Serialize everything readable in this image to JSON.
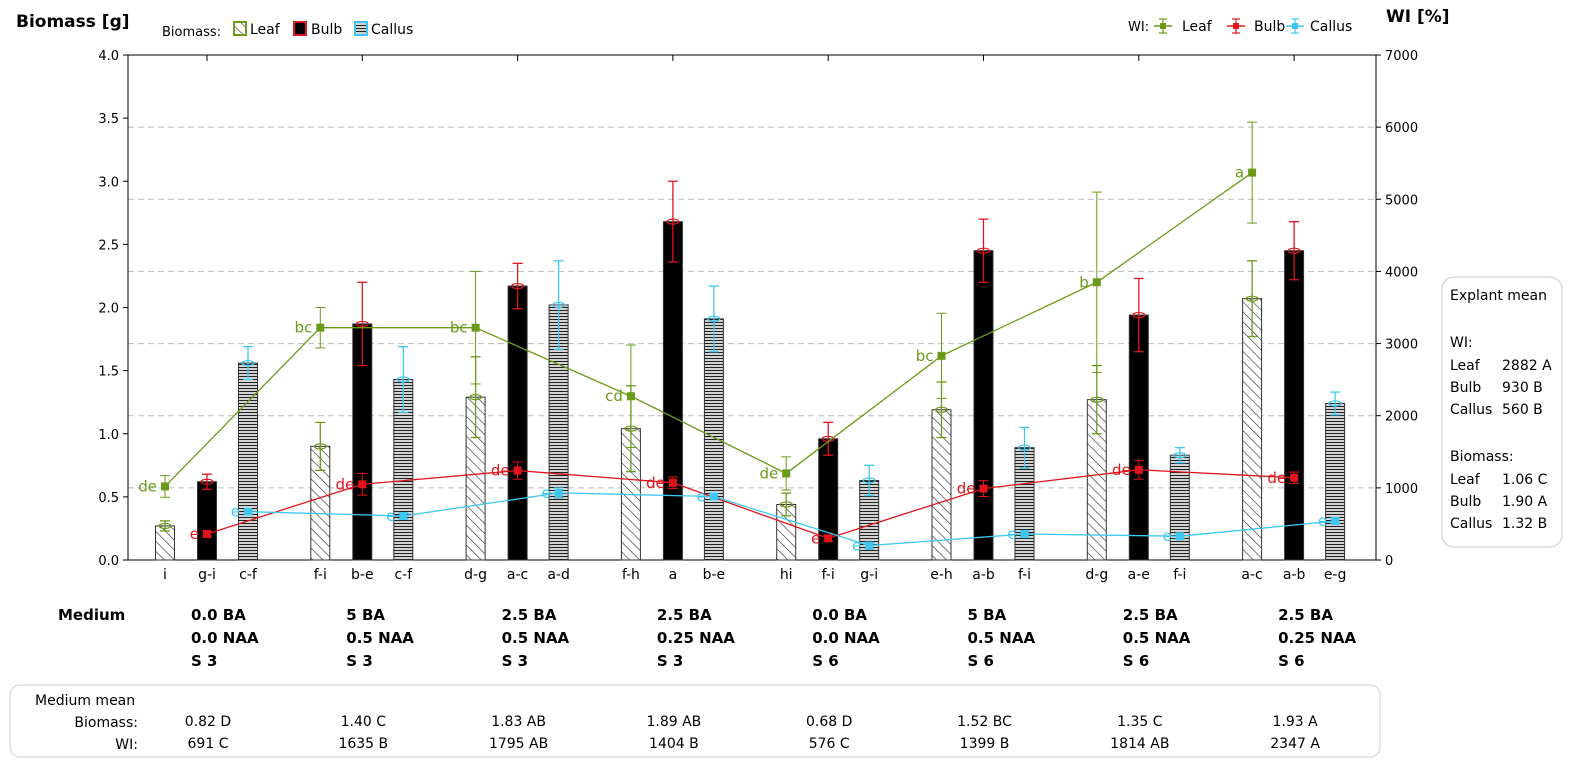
{
  "chart_data": {
    "type": "bar",
    "left_axis_title": "Biomass [g]",
    "right_axis_title": "WI [%]",
    "left_ticks": [
      "0.0",
      "0.5",
      "1.0",
      "1.5",
      "2.0",
      "2.5",
      "3.0",
      "3.5",
      "4.0"
    ],
    "right_ticks": [
      "0",
      "1000",
      "2000",
      "3000",
      "4000",
      "5000",
      "6000",
      "7000"
    ],
    "ylim_left": [
      0,
      4.0
    ],
    "ylim_right": [
      0,
      7000
    ],
    "colors": {
      "leaf": "#6b9a1a",
      "bulb": "#e0141c",
      "callus": "#3cc8f0",
      "grid": "#bbbbbb"
    },
    "legend_biomass": {
      "title": "Biomass:",
      "items": [
        "Leaf",
        "Bulb",
        "Callus"
      ]
    },
    "legend_wi": {
      "title": "WI:",
      "items": [
        "Leaf",
        "Bulb",
        "Callus"
      ]
    },
    "bar_series": [
      {
        "name": "Leaf",
        "values": [
          0.27,
          0.9,
          1.29,
          1.04,
          0.44,
          1.19,
          1.27,
          2.07
        ],
        "errors": [
          0.04,
          0.19,
          0.32,
          0.34,
          0.09,
          0.22,
          0.27,
          0.3
        ],
        "letters": [
          "i",
          "f-i",
          "d-g",
          "f-h",
          "hi",
          "e-h",
          "d-g",
          "a-c"
        ]
      },
      {
        "name": "Bulb",
        "values": [
          0.62,
          1.87,
          2.17,
          2.68,
          0.96,
          2.45,
          1.94,
          2.45
        ],
        "errors": [
          0.06,
          0.33,
          0.18,
          0.32,
          0.13,
          0.25,
          0.29,
          0.23
        ],
        "letters": [
          "g-i",
          "b-e",
          "a-c",
          "a",
          "f-i",
          "a-b",
          "a-e",
          "a-b"
        ]
      },
      {
        "name": "Callus",
        "values": [
          1.56,
          1.43,
          2.02,
          1.91,
          0.63,
          0.89,
          0.83,
          1.24
        ],
        "errors": [
          0.13,
          0.26,
          0.35,
          0.26,
          0.12,
          0.16,
          0.06,
          0.09
        ],
        "letters": [
          "c-f",
          "c-f",
          "a-d",
          "b-e",
          "g-i",
          "f-i",
          "f-i",
          "e-g"
        ]
      }
    ],
    "wi_series": [
      {
        "name": "Leaf",
        "values": [
          1020,
          3220,
          3220,
          2270,
          1200,
          2830,
          3850,
          5370
        ],
        "errors": [
          150,
          280,
          780,
          710,
          230,
          590,
          1250,
          700
        ],
        "letters": [
          "de",
          "bc",
          "bc",
          "cd",
          "de",
          "bc",
          "b",
          "a"
        ]
      },
      {
        "name": "Bulb",
        "values": [
          360,
          1050,
          1240,
          1070,
          300,
          990,
          1250,
          1140
        ],
        "errors": [
          40,
          150,
          120,
          80,
          40,
          110,
          130,
          80
        ],
        "letters": [
          "e",
          "de",
          "de",
          "de",
          "e",
          "de",
          "de",
          "de"
        ]
      },
      {
        "name": "Callus",
        "values": [
          670,
          610,
          930,
          880,
          200,
          360,
          330,
          540
        ],
        "errors": [
          30,
          40,
          70,
          50,
          40,
          50,
          40,
          40
        ],
        "letters": [
          "e",
          "e",
          "e",
          "e",
          "e",
          "e",
          "e",
          "e"
        ]
      }
    ],
    "explant_mean": {
      "title": "Explant mean",
      "wi_title": "WI:",
      "wi_rows": [
        {
          "label": "Leaf",
          "value": "2882 A"
        },
        {
          "label": "Bulb",
          "value": "930 B"
        },
        {
          "label": "Callus",
          "value": "560 B"
        }
      ],
      "biomass_title": "Biomass:",
      "biomass_rows": [
        {
          "label": "Leaf",
          "value": "1.06 C"
        },
        {
          "label": "Bulb",
          "value": "1.90 A"
        },
        {
          "label": "Callus",
          "value": "1.32 B"
        }
      ]
    },
    "medium_label": "Medium",
    "groups": [
      {
        "medium": [
          "0.0 BA",
          "0.0 NAA",
          "S 3"
        ],
        "biomass_mean": "0.82 D",
        "wi_mean": "691 C"
      },
      {
        "medium": [
          "5 BA",
          "0.5 NAA",
          "S 3"
        ],
        "biomass_mean": "1.40 C",
        "wi_mean": "1635 B"
      },
      {
        "medium": [
          "2.5 BA",
          "0.5 NAA",
          "S 3"
        ],
        "biomass_mean": "1.83 AB",
        "wi_mean": "1795 AB"
      },
      {
        "medium": [
          "2.5 BA",
          "0.25 NAA",
          "S 3"
        ],
        "biomass_mean": "1.89 AB",
        "wi_mean": "1404 B"
      },
      {
        "medium": [
          "0.0 BA",
          "0.0 NAA",
          "S 6"
        ],
        "biomass_mean": "0.68 D",
        "wi_mean": "576 C"
      },
      {
        "medium": [
          "5 BA",
          "0.5 NAA",
          "S 6"
        ],
        "biomass_mean": "1.52 BC",
        "wi_mean": "1399 B"
      },
      {
        "medium": [
          "2.5 BA",
          "0.5 NAA",
          "S 6"
        ],
        "biomass_mean": "1.35 C",
        "wi_mean": "1814 AB"
      },
      {
        "medium": [
          "2.5 BA",
          "0.25 NAA",
          "S 6"
        ],
        "biomass_mean": "1.93 A",
        "wi_mean": "2347 A"
      }
    ],
    "medium_mean": {
      "title": "Medium mean",
      "biomass_label": "Biomass:",
      "wi_label": "WI:"
    }
  }
}
